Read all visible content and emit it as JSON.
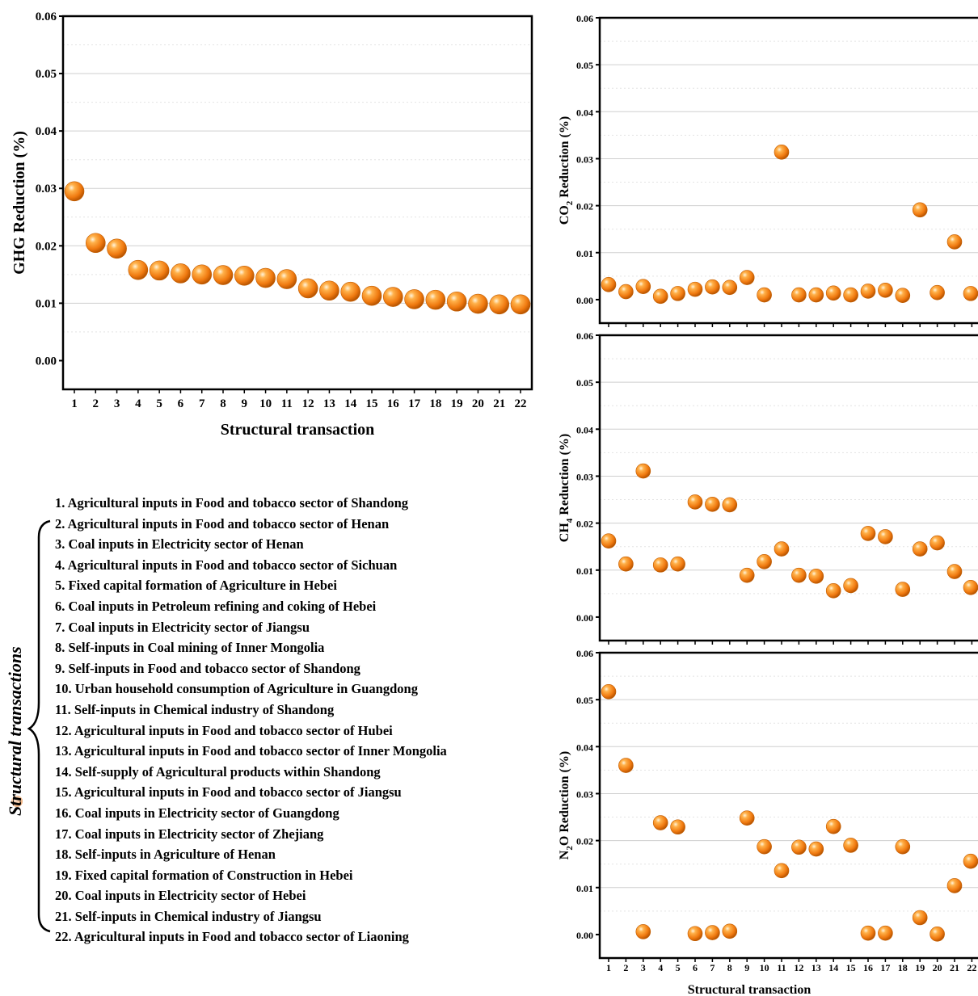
{
  "colors": {
    "marker": "#F08A1C",
    "marker_light": "#FFE1B0",
    "marker_dark": "#B85400",
    "grid": "#d0d0d0"
  },
  "chart_data": [
    {
      "id": "ghg",
      "type": "scatter",
      "xlabel": "Structural transaction",
      "ylabel": "GHG Reduction (%)",
      "ylim": [
        -0.005,
        0.06
      ],
      "yticks": [
        "0.00",
        "0.01",
        "0.02",
        "0.03",
        "0.04",
        "0.05",
        "0.06"
      ],
      "x": [
        1,
        2,
        3,
        4,
        5,
        6,
        7,
        8,
        9,
        10,
        11,
        12,
        13,
        14,
        15,
        16,
        17,
        18,
        19,
        20,
        21,
        22
      ],
      "values": [
        0.0295,
        0.0205,
        0.0195,
        0.0158,
        0.0157,
        0.0152,
        0.015,
        0.0149,
        0.0148,
        0.0144,
        0.0142,
        0.0126,
        0.0122,
        0.012,
        0.0113,
        0.0111,
        0.0107,
        0.0106,
        0.0103,
        0.0099,
        0.0098,
        0.0098
      ]
    },
    {
      "id": "co2",
      "type": "scatter",
      "xlabel": "",
      "ylabel": "CO2 Reduction (%)",
      "ylabel_main": "CO",
      "ylabel_sub": "2",
      "ylabel_rest": " Reduction (%)",
      "ylim": [
        -0.005,
        0.06
      ],
      "yticks": [
        "0.00",
        "0.01",
        "0.02",
        "0.03",
        "0.04",
        "0.05",
        "0.06"
      ],
      "x": [
        1,
        2,
        3,
        4,
        5,
        6,
        7,
        8,
        9,
        10,
        11,
        12,
        13,
        14,
        15,
        16,
        17,
        18,
        19,
        20,
        21,
        22
      ],
      "values": [
        0.0032,
        0.0017,
        0.0028,
        0.0007,
        0.0013,
        0.0022,
        0.0027,
        0.0026,
        0.0047,
        0.001,
        0.0314,
        0.001,
        0.001,
        0.0014,
        0.001,
        0.0018,
        0.002,
        0.0009,
        0.0191,
        0.0015,
        0.0123,
        0.0013
      ]
    },
    {
      "id": "ch4",
      "type": "scatter",
      "xlabel": "",
      "ylabel": "CH4 Reduction (%)",
      "ylabel_main": "CH",
      "ylabel_sub": "4",
      "ylabel_rest": " Reduction (%)",
      "ylim": [
        -0.005,
        0.06
      ],
      "yticks": [
        "0.00",
        "0.01",
        "0.02",
        "0.03",
        "0.04",
        "0.05",
        "0.06"
      ],
      "x": [
        1,
        2,
        3,
        4,
        5,
        6,
        7,
        8,
        9,
        10,
        11,
        12,
        13,
        14,
        15,
        16,
        17,
        18,
        19,
        20,
        21,
        22
      ],
      "values": [
        0.0162,
        0.0113,
        0.0311,
        0.0111,
        0.0113,
        0.0245,
        0.024,
        0.0239,
        0.0089,
        0.0118,
        0.0145,
        0.0089,
        0.0087,
        0.0056,
        0.0067,
        0.0178,
        0.0171,
        0.0059,
        0.0145,
        0.0158,
        0.0097,
        0.0063
      ]
    },
    {
      "id": "n2o",
      "type": "scatter",
      "xlabel": "Structural transaction",
      "ylabel": "N2O Reduction (%)",
      "ylabel_main": "N",
      "ylabel_sub": "2",
      "ylabel_rest": "O Reduction (%)",
      "ylim": [
        -0.005,
        0.06
      ],
      "yticks": [
        "0.00",
        "0.01",
        "0.02",
        "0.03",
        "0.04",
        "0.05",
        "0.06"
      ],
      "x": [
        1,
        2,
        3,
        4,
        5,
        6,
        7,
        8,
        9,
        10,
        11,
        12,
        13,
        14,
        15,
        16,
        17,
        18,
        19,
        20,
        21,
        22
      ],
      "values": [
        0.0517,
        0.036,
        0.0006,
        0.0238,
        0.0229,
        0.0002,
        0.0004,
        0.0007,
        0.0248,
        0.0187,
        0.0136,
        0.0186,
        0.0182,
        0.023,
        0.019,
        0.0003,
        0.0003,
        0.0187,
        0.0036,
        0.0001,
        0.0104,
        0.0156
      ]
    }
  ],
  "legend_title": "Structural transactions",
  "legend_items": [
    "1. Agricultural inputs in Food and tobacco sector of Shandong",
    "2. Agricultural inputs in Food and tobacco sector of Henan",
    "3. Coal inputs in Electricity sector of Henan",
    "4. Agricultural inputs in Food and tobacco sector of Sichuan",
    "5. Fixed capital formation of Agriculture in Hebei",
    "6. Coal inputs in Petroleum refining and coking of Hebei",
    "7. Coal inputs in Electricity sector of Jiangsu",
    "8. Self-inputs in Coal mining of Inner Mongolia",
    "9. Self-inputs in Food and tobacco sector of Shandong",
    "10. Urban household consumption of Agriculture in Guangdong",
    "11. Self-inputs in Chemical industry of Shandong",
    "12. Agricultural inputs in Food and tobacco sector of Hubei",
    "13. Agricultural inputs in Food and tobacco sector of Inner Mongolia",
    "14. Self-supply of Agricultural products within Shandong",
    "15. Agricultural inputs in Food and tobacco sector of Jiangsu",
    "16. Coal inputs in Electricity sector of Guangdong",
    "17. Coal inputs in Electricity sector of Zhejiang",
    "18. Self-inputs in Agriculture of Henan",
    "19. Fixed capital formation of Construction in Hebei",
    "20. Coal inputs in Electricity sector of Hebei",
    "21. Self-inputs in Chemical industry of Jiangsu",
    "22. Agricultural inputs in Food and tobacco sector of Liaoning"
  ]
}
